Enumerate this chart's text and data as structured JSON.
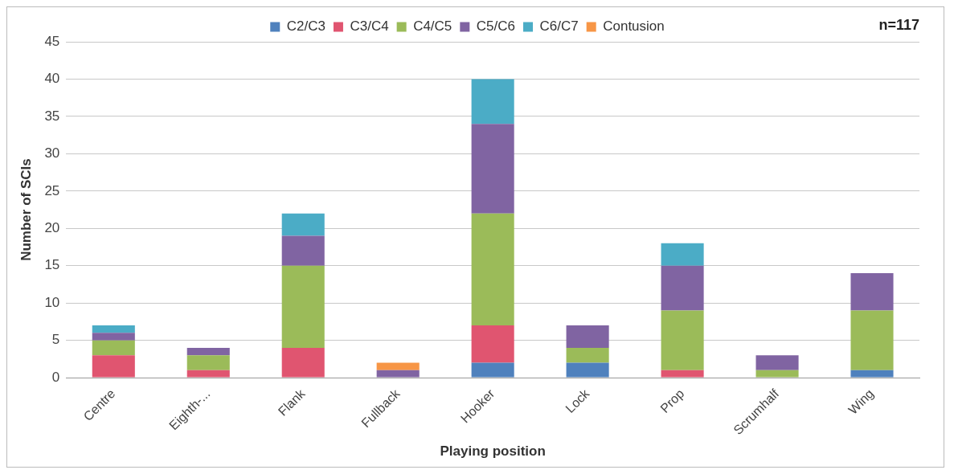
{
  "chart_data": {
    "type": "bar",
    "stacked": true,
    "xlabel": "Playing position",
    "ylabel": "Number of SCIs",
    "annotations": [
      "n=117"
    ],
    "categories": [
      "Centre",
      "Eighth-...",
      "Flank",
      "Fullback",
      "Hooker",
      "Lock",
      "Prop",
      "Scrumhalf",
      "Wing"
    ],
    "series": [
      {
        "name": "C2/C3",
        "color": "#4f81bd",
        "values": [
          0,
          0,
          0,
          0,
          2,
          2,
          0,
          0,
          1
        ]
      },
      {
        "name": "C3/C4",
        "color": "#e05570",
        "values": [
          3,
          1,
          4,
          0,
          5,
          0,
          1,
          0,
          0
        ]
      },
      {
        "name": "C4/C5",
        "color": "#9bbb59",
        "values": [
          2,
          2,
          11,
          0,
          15,
          2,
          8,
          1,
          8
        ]
      },
      {
        "name": "C5/C6",
        "color": "#8064a2",
        "values": [
          1,
          1,
          4,
          1,
          12,
          3,
          6,
          2,
          5
        ]
      },
      {
        "name": "C6/C7",
        "color": "#4bacc6",
        "values": [
          1,
          0,
          3,
          0,
          6,
          0,
          3,
          0,
          0
        ]
      },
      {
        "name": "Contusion",
        "color": "#f79646",
        "values": [
          0,
          0,
          0,
          1,
          0,
          0,
          0,
          0,
          0
        ]
      }
    ],
    "ylim": [
      0,
      45
    ],
    "yticks": [
      0,
      5,
      10,
      15,
      20,
      25,
      30,
      35,
      40,
      45
    ],
    "grid": "y",
    "legend": "top"
  }
}
